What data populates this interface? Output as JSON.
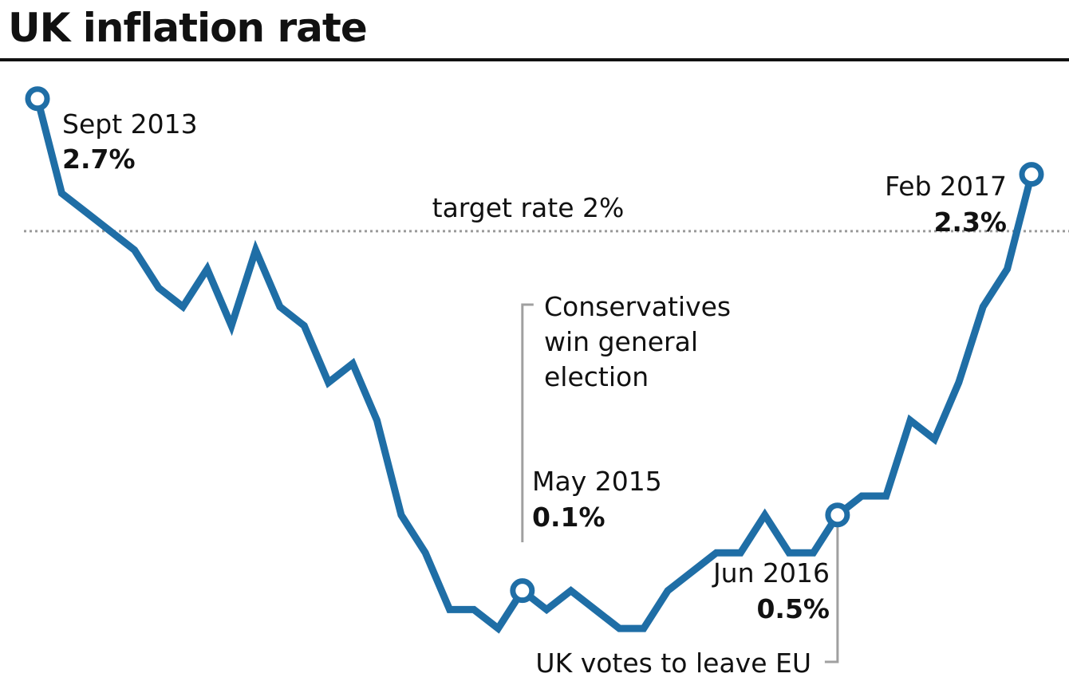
{
  "title": "UK inflation rate",
  "colors": {
    "line": "#1f6ea6",
    "target": "#9a9a9a",
    "leader": "#a0a0a0",
    "text": "#111111"
  },
  "chart_data": {
    "type": "line",
    "title": "UK inflation rate",
    "xlabel": "",
    "ylabel": "",
    "unit": "%",
    "x_range": [
      "2013-09",
      "2017-02"
    ],
    "ylim": [
      -0.15,
      2.8
    ],
    "grid": false,
    "legend": "none",
    "series": [
      {
        "x": [
          "2013-09",
          "2013-10",
          "2013-11",
          "2013-12",
          "2014-01",
          "2014-02",
          "2014-03",
          "2014-04",
          "2014-05",
          "2014-06",
          "2014-07",
          "2014-08",
          "2014-09",
          "2014-10",
          "2014-11",
          "2014-12",
          "2015-01",
          "2015-02",
          "2015-03",
          "2015-04",
          "2015-05",
          "2015-06",
          "2015-07",
          "2015-08",
          "2015-09",
          "2015-10",
          "2015-11",
          "2015-12",
          "2016-01",
          "2016-02",
          "2016-03",
          "2016-04",
          "2016-05",
          "2016-06",
          "2016-07",
          "2016-08",
          "2016-09",
          "2016-10",
          "2016-11",
          "2016-12",
          "2017-01",
          "2017-02"
        ],
        "y": [
          2.7,
          2.2,
          2.1,
          2.0,
          1.9,
          1.7,
          1.6,
          1.8,
          1.5,
          1.9,
          1.6,
          1.5,
          1.2,
          1.3,
          1.0,
          0.5,
          0.3,
          0.0,
          0.0,
          -0.1,
          0.1,
          0.0,
          0.1,
          0.0,
          -0.1,
          -0.1,
          0.1,
          0.2,
          0.3,
          0.3,
          0.5,
          0.3,
          0.3,
          0.5,
          0.6,
          0.6,
          1.0,
          0.9,
          1.2,
          1.6,
          1.8,
          2.3
        ]
      }
    ],
    "target": {
      "label": "target rate 2%",
      "value": 2.0
    },
    "annotations": [
      {
        "date": "2013-09",
        "label": "Sept 2013",
        "value": "2.7%"
      },
      {
        "date": "2015-05",
        "label": "May 2015",
        "value": "0.1%"
      },
      {
        "date": "2016-06",
        "label": "Jun 2016",
        "value": "0.5%"
      },
      {
        "date": "2017-02",
        "label": "Feb 2017",
        "value": "2.3%"
      }
    ],
    "events": [
      {
        "date": "2015-05",
        "lines": [
          "Conservatives",
          "win general",
          "election"
        ]
      },
      {
        "date": "2016-06",
        "text": "UK votes to leave EU"
      }
    ]
  }
}
